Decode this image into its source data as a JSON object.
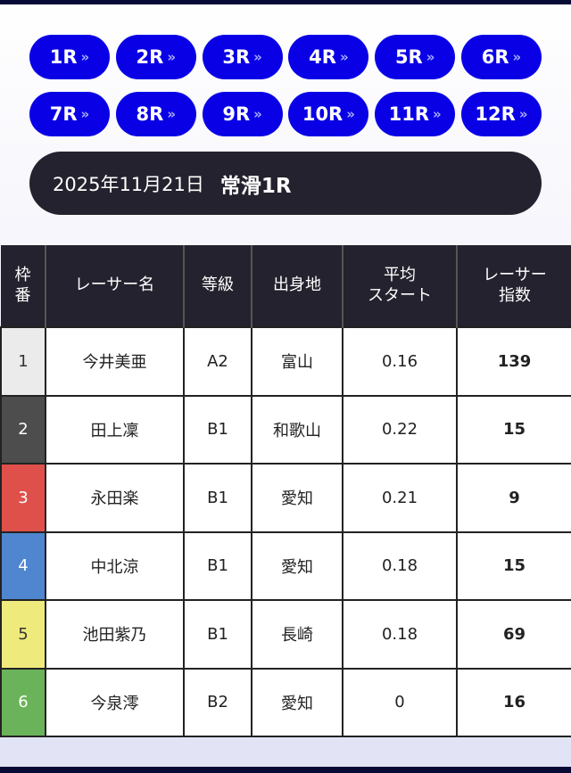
{
  "races": [
    {
      "label": "1R"
    },
    {
      "label": "2R"
    },
    {
      "label": "3R"
    },
    {
      "label": "4R"
    },
    {
      "label": "5R"
    },
    {
      "label": "6R"
    },
    {
      "label": "7R"
    },
    {
      "label": "8R"
    },
    {
      "label": "9R"
    },
    {
      "label": "10R"
    },
    {
      "label": "11R"
    },
    {
      "label": "12R"
    }
  ],
  "race_chevron": "»",
  "header": {
    "date": "2025年11月21日",
    "venue_race": "常滑1R"
  },
  "table": {
    "columns": [
      "枠\n番",
      "レーサー名",
      "等級",
      "出身地",
      "平均\nスタート",
      "レーサー\n指数"
    ],
    "rows": [
      {
        "frame": "1",
        "name": "今井美亜",
        "class": "A2",
        "home": "富山",
        "avg_start": "0.16",
        "index": "139",
        "color": "#ebebeb",
        "text_color": "#333333"
      },
      {
        "frame": "2",
        "name": "田上凜",
        "class": "B1",
        "home": "和歌山",
        "avg_start": "0.22",
        "index": "15",
        "color": "#4d4d4d",
        "text_color": "#ffffff"
      },
      {
        "frame": "3",
        "name": "永田楽",
        "class": "B1",
        "home": "愛知",
        "avg_start": "0.21",
        "index": "9",
        "color": "#e0504b",
        "text_color": "#ffffff"
      },
      {
        "frame": "4",
        "name": "中北涼",
        "class": "B1",
        "home": "愛知",
        "avg_start": "0.18",
        "index": "15",
        "color": "#4f86cf",
        "text_color": "#ffffff"
      },
      {
        "frame": "5",
        "name": "池田紫乃",
        "class": "B1",
        "home": "長崎",
        "avg_start": "0.18",
        "index": "69",
        "color": "#efea7c",
        "text_color": "#333333"
      },
      {
        "frame": "6",
        "name": "今泉澪",
        "class": "B2",
        "home": "愛知",
        "avg_start": "0",
        "index": "16",
        "color": "#6bb35a",
        "text_color": "#ffffff"
      }
    ]
  }
}
